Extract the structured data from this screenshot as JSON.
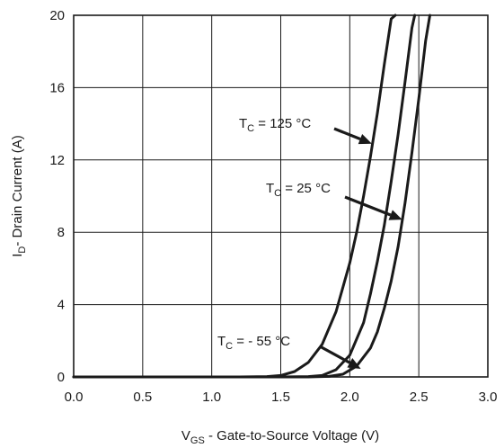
{
  "chart_data": {
    "type": "line",
    "xlabel": {
      "main": "V",
      "sub": "GS",
      "rest": " - Gate-to-Source Voltage (V)"
    },
    "ylabel": {
      "main": "I",
      "sub": "D",
      "rest": "- Drain Current (A)"
    },
    "xlim": [
      0,
      3.0
    ],
    "ylim": [
      0,
      20
    ],
    "x_ticks": [
      "0.0",
      "0.5",
      "1.0",
      "1.5",
      "2.0",
      "2.5",
      "3.0"
    ],
    "y_ticks": [
      "0",
      "4",
      "8",
      "12",
      "16",
      "20"
    ],
    "grid": true,
    "series": [
      {
        "name": "T_C = 125 °C",
        "x": [
          0.0,
          1.2,
          1.4,
          1.5,
          1.6,
          1.7,
          1.8,
          1.9,
          2.0,
          2.05,
          2.1,
          2.15,
          2.2,
          2.25,
          2.3,
          2.33
        ],
        "y": [
          0,
          0,
          0.02,
          0.08,
          0.3,
          0.8,
          1.8,
          3.6,
          6.3,
          8.0,
          10.0,
          12.2,
          14.6,
          17.3,
          19.8,
          20
        ]
      },
      {
        "name": "T_C = 25 °C",
        "x": [
          0.0,
          1.5,
          1.7,
          1.8,
          1.9,
          2.0,
          2.1,
          2.15,
          2.2,
          2.25,
          2.3,
          2.35,
          2.4,
          2.45,
          2.47
        ],
        "y": [
          0,
          0,
          0.02,
          0.08,
          0.4,
          1.2,
          3.0,
          4.6,
          6.4,
          8.4,
          10.8,
          13.4,
          16.3,
          19.3,
          20
        ]
      },
      {
        "name": "T_C = - 55 °C",
        "x": [
          0.0,
          1.7,
          1.85,
          1.95,
          2.05,
          2.15,
          2.2,
          2.25,
          2.3,
          2.35,
          2.4,
          2.45,
          2.5,
          2.55,
          2.58
        ],
        "y": [
          0,
          0,
          0.03,
          0.15,
          0.6,
          1.6,
          2.5,
          3.8,
          5.3,
          7.2,
          9.6,
          12.4,
          15.4,
          18.6,
          20
        ]
      }
    ],
    "annotations": [
      {
        "main": "T",
        "sub": "C",
        "rest": " = 125 °C"
      },
      {
        "main": "T",
        "sub": "C",
        "rest": " = 25 °C"
      },
      {
        "main": "T",
        "sub": "C",
        "rest": " = - 55 °C"
      }
    ]
  }
}
